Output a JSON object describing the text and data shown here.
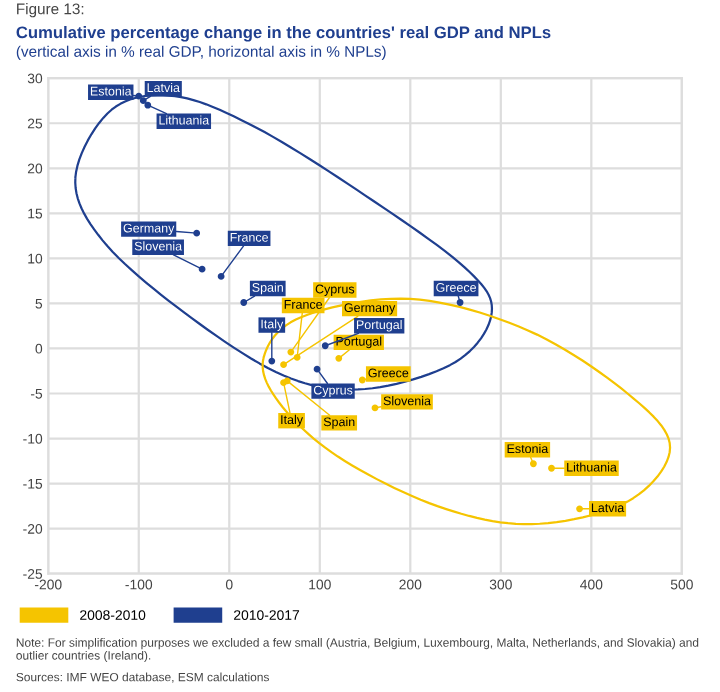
{
  "chart_data": {
    "type": "scatter",
    "title": "Cumulative percentage change in the countries' real GDP and NPLs",
    "subtitle": "(vertical axis in % real GDP, horizontal axis in % NPLs)",
    "xlim": [
      -200,
      500
    ],
    "xticks": [
      -200,
      -100,
      0,
      100,
      200,
      300,
      400,
      500
    ],
    "ylim": [
      -25,
      30
    ],
    "yticks": [
      -25,
      -20,
      -15,
      -10,
      -5,
      0,
      5,
      10,
      15,
      20,
      25,
      30
    ],
    "grid": true,
    "legend": "bottom",
    "marker": "circle",
    "series": [
      {
        "name": "2008-2010",
        "color": "#f5c400",
        "x": [
          68,
          75,
          60,
          121,
          147,
          60,
          64,
          161,
          336,
          356,
          387
        ],
        "values": [
          -0.4,
          -1.0,
          -1.8,
          -1.1,
          -3.5,
          -3.8,
          -3.6,
          -6.6,
          -12.8,
          -13.3,
          -17.8
        ]
      },
      {
        "name": "2010-2017",
        "color": "#1f3f8f",
        "x": [
          -100,
          -95,
          -90,
          -36,
          -30,
          -9,
          16,
          47,
          106,
          97,
          255
        ],
        "values": [
          28,
          27.5,
          27,
          12.8,
          8.8,
          8.0,
          5.1,
          -1.4,
          0.3,
          -2.3,
          5.1
        ]
      }
    ],
    "annotations": [
      {
        "text": "Cyprus",
        "x": 68,
        "y": -0.4
      },
      {
        "text": "France",
        "x": 75,
        "y": -1.0
      },
      {
        "text": "Germany",
        "x": 60,
        "y": -1.8
      },
      {
        "text": "Portugal",
        "x": 121,
        "y": -1.1
      },
      {
        "text": "Greece",
        "x": 147,
        "y": -3.5
      },
      {
        "text": "Italy",
        "x": 60,
        "y": -3.8
      },
      {
        "text": "Spain",
        "x": 64,
        "y": -3.6
      },
      {
        "text": "Slovenia",
        "x": 161,
        "y": -6.6
      },
      {
        "text": "Estonia",
        "x": 336,
        "y": -12.8
      },
      {
        "text": "Lithuania",
        "x": 356,
        "y": -13.3
      },
      {
        "text": "Latvia",
        "x": 387,
        "y": -17.8
      },
      {
        "text": "Estonia",
        "x": -100,
        "y": 28
      },
      {
        "text": "Latvia",
        "x": -95,
        "y": 27.5
      },
      {
        "text": "Lithuania",
        "x": -90,
        "y": 27
      },
      {
        "text": "Germany",
        "x": -36,
        "y": 12.8
      },
      {
        "text": "Slovenia",
        "x": -30,
        "y": 8.8
      },
      {
        "text": "France",
        "x": -9,
        "y": 8.0
      },
      {
        "text": "Spain",
        "x": 16,
        "y": 5.1
      },
      {
        "text": "Italy",
        "x": 47,
        "y": -1.4
      },
      {
        "text": "Portugal",
        "x": 106,
        "y": 0.3
      },
      {
        "text": "Cyprus",
        "x": 97,
        "y": -2.3
      },
      {
        "text": "Greece",
        "x": 255,
        "y": 5.1
      },
      "Figure 13:",
      "Note: For simplification purposes we excluded a few small (Austria, Belgium, Luxembourg, Malta, Netherlands, and Slovakia) and outlier countries (Ireland).",
      "Sources: IMF WEO database, ESM calculations"
    ]
  }
}
